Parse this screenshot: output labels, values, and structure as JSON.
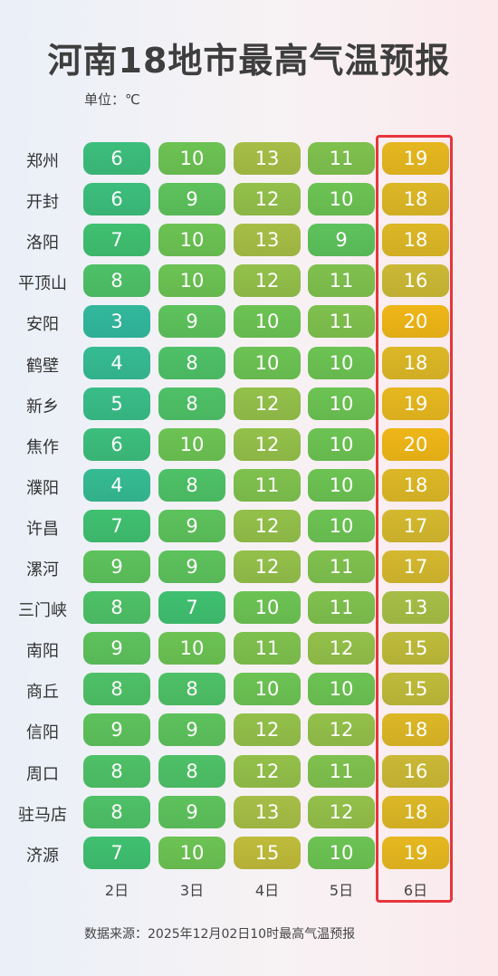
{
  "title": "河南18地市最高气温预报",
  "unit_label": "单位：℃",
  "source": "数据来源：2025年12月02日10时最高气温预报",
  "chart_data": {
    "type": "heatmap",
    "title": "河南18地市最高气温预报",
    "unit": "℃",
    "columns": [
      "2日",
      "3日",
      "4日",
      "5日",
      "6日"
    ],
    "highlighted_column": "6日",
    "rows": [
      {
        "city": "郑州",
        "values": [
          6,
          10,
          13,
          11,
          19
        ]
      },
      {
        "city": "开封",
        "values": [
          6,
          9,
          12,
          10,
          18
        ]
      },
      {
        "city": "洛阳",
        "values": [
          7,
          10,
          13,
          9,
          18
        ]
      },
      {
        "city": "平顶山",
        "values": [
          8,
          10,
          12,
          11,
          16
        ]
      },
      {
        "city": "安阳",
        "values": [
          3,
          9,
          10,
          11,
          20
        ]
      },
      {
        "city": "鹤壁",
        "values": [
          4,
          8,
          10,
          10,
          18
        ]
      },
      {
        "city": "新乡",
        "values": [
          5,
          8,
          12,
          10,
          19
        ]
      },
      {
        "city": "焦作",
        "values": [
          6,
          10,
          12,
          10,
          20
        ]
      },
      {
        "city": "濮阳",
        "values": [
          4,
          8,
          11,
          10,
          18
        ]
      },
      {
        "city": "许昌",
        "values": [
          7,
          9,
          12,
          10,
          17
        ]
      },
      {
        "city": "漯河",
        "values": [
          9,
          9,
          12,
          11,
          17
        ]
      },
      {
        "city": "三门峡",
        "values": [
          8,
          7,
          10,
          11,
          13
        ]
      },
      {
        "city": "南阳",
        "values": [
          9,
          10,
          11,
          12,
          15
        ]
      },
      {
        "city": "商丘",
        "values": [
          8,
          8,
          10,
          10,
          15
        ]
      },
      {
        "city": "信阳",
        "values": [
          9,
          9,
          12,
          12,
          18
        ]
      },
      {
        "city": "周口",
        "values": [
          8,
          8,
          12,
          11,
          16
        ]
      },
      {
        "city": "驻马店",
        "values": [
          8,
          9,
          13,
          12,
          18
        ]
      },
      {
        "city": "济源",
        "values": [
          7,
          10,
          15,
          10,
          19
        ]
      }
    ],
    "color_scale": {
      "3": "#2fae94",
      "7": "#3cb56a",
      "10": "#66b84e",
      "13": "#9db342",
      "16": "#bfae32",
      "20": "#e1ac16"
    }
  }
}
